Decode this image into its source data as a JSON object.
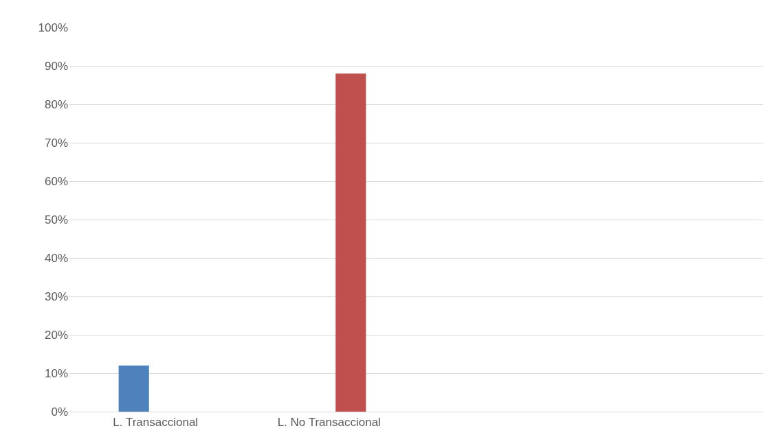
{
  "chart_data": {
    "type": "bar",
    "categories": [
      "L. Transaccional",
      "L. No Transaccional",
      null,
      null
    ],
    "series": [
      {
        "color": "#4f81bd",
        "values": [
          12,
          null,
          null,
          null
        ]
      },
      {
        "color": "#c0504d",
        "values": [
          null,
          88,
          null,
          null
        ]
      }
    ],
    "ylim": [
      0,
      100
    ],
    "yticks": [
      {
        "value": 0,
        "label": "0%"
      },
      {
        "value": 10,
        "label": "10%"
      },
      {
        "value": 20,
        "label": "20%"
      },
      {
        "value": 30,
        "label": "30%"
      },
      {
        "value": 40,
        "label": "40%"
      },
      {
        "value": 50,
        "label": "50%"
      },
      {
        "value": 60,
        "label": "60%"
      },
      {
        "value": 70,
        "label": "70%"
      },
      {
        "value": 80,
        "label": "80%"
      },
      {
        "value": 90,
        "label": "90%"
      },
      {
        "value": 100,
        "label": "100%"
      }
    ],
    "grid": "y"
  }
}
